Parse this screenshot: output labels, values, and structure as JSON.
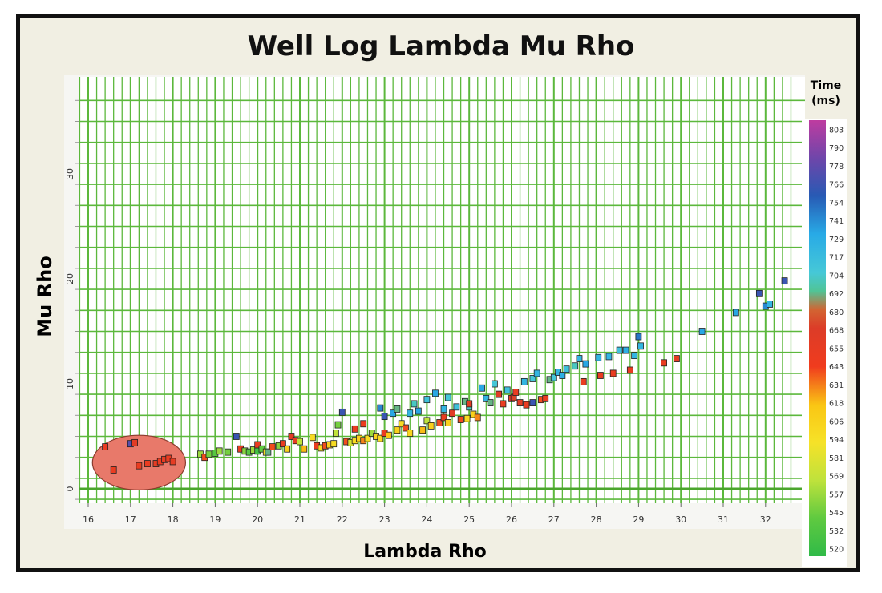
{
  "chart_data": {
    "type": "scatter",
    "title": "Well Log Lambda Mu Rho",
    "xlabel": "Lambda Rho",
    "ylabel": "Mu Rho",
    "xlim": [
      15.8,
      32.7
    ],
    "ylim": [
      -1,
      38
    ],
    "xticks": [
      "16",
      "17",
      "18",
      "19",
      "20",
      "21",
      "22",
      "23",
      "24",
      "25",
      "26",
      "27",
      "28",
      "29",
      "30",
      "31",
      "32"
    ],
    "yticks": [
      "0",
      "10",
      "20",
      "30"
    ],
    "grid": true,
    "highlight_ellipse": {
      "cx": 17.2,
      "cy": 2.5,
      "rx": 1.1,
      "ry": 2.6,
      "color": "#e8796a"
    },
    "colorbar": {
      "title_line1": "Time",
      "title_line2": "(ms)",
      "min": 520,
      "max": 803,
      "ticks": [
        "803",
        "790",
        "778",
        "766",
        "754",
        "741",
        "729",
        "717",
        "704",
        "692",
        "680",
        "668",
        "655",
        "643",
        "631",
        "618",
        "606",
        "594",
        "581",
        "569",
        "557",
        "545",
        "532",
        "520"
      ]
    },
    "points": [
      [
        16.4,
        4,
        650
      ],
      [
        16.6,
        1.8,
        650
      ],
      [
        17.0,
        4.3,
        770
      ],
      [
        17.1,
        4.4,
        660
      ],
      [
        17.2,
        2.2,
        650
      ],
      [
        17.4,
        2.4,
        650
      ],
      [
        17.6,
        2.4,
        655
      ],
      [
        17.7,
        2.6,
        650
      ],
      [
        17.8,
        2.8,
        655
      ],
      [
        17.9,
        2.9,
        650
      ],
      [
        18.0,
        2.6,
        655
      ],
      [
        18.65,
        3.3,
        560
      ],
      [
        18.75,
        3.0,
        640
      ],
      [
        18.85,
        3.3,
        550
      ],
      [
        19.0,
        3.4,
        540
      ],
      [
        19.1,
        3.6,
        560
      ],
      [
        19.3,
        3.5,
        550
      ],
      [
        19.5,
        5.0,
        760
      ],
      [
        19.6,
        3.8,
        650
      ],
      [
        19.7,
        3.6,
        555
      ],
      [
        19.8,
        3.5,
        540
      ],
      [
        19.9,
        3.7,
        560
      ],
      [
        20.0,
        3.6,
        530
      ],
      [
        20.0,
        4.2,
        650
      ],
      [
        20.1,
        3.8,
        545
      ],
      [
        20.2,
        3.5,
        600
      ],
      [
        20.25,
        3.5,
        690
      ],
      [
        20.35,
        4.0,
        640
      ],
      [
        20.5,
        4.1,
        555
      ],
      [
        20.6,
        4.3,
        650
      ],
      [
        20.7,
        3.8,
        610
      ],
      [
        20.8,
        5.0,
        660
      ],
      [
        20.9,
        4.6,
        655
      ],
      [
        21.0,
        4.5,
        570
      ],
      [
        21.1,
        3.8,
        620
      ],
      [
        21.3,
        4.9,
        600
      ],
      [
        21.4,
        4.1,
        650
      ],
      [
        21.5,
        3.9,
        600
      ],
      [
        21.6,
        4.1,
        640
      ],
      [
        21.7,
        4.2,
        610
      ],
      [
        21.8,
        4.3,
        600
      ],
      [
        21.85,
        5.3,
        570
      ],
      [
        21.9,
        6.1,
        550
      ],
      [
        22.0,
        7.3,
        760
      ],
      [
        22.1,
        4.5,
        640
      ],
      [
        22.2,
        4.4,
        580
      ],
      [
        22.3,
        4.6,
        600
      ],
      [
        22.3,
        5.7,
        650
      ],
      [
        22.4,
        4.8,
        610
      ],
      [
        22.5,
        6.2,
        645
      ],
      [
        22.5,
        4.6,
        630
      ],
      [
        22.6,
        4.8,
        600
      ],
      [
        22.7,
        5.3,
        560
      ],
      [
        22.8,
        5.0,
        610
      ],
      [
        22.9,
        4.8,
        600
      ],
      [
        22.9,
        7.7,
        740
      ],
      [
        23.0,
        5.3,
        650
      ],
      [
        23.0,
        6.9,
        760
      ],
      [
        23.1,
        5.1,
        615
      ],
      [
        23.2,
        7.2,
        730
      ],
      [
        23.3,
        7.6,
        690
      ],
      [
        23.3,
        5.6,
        610
      ],
      [
        23.4,
        6.2,
        600
      ],
      [
        23.5,
        5.8,
        640
      ],
      [
        23.6,
        7.2,
        720
      ],
      [
        23.6,
        5.3,
        605
      ],
      [
        23.7,
        8.1,
        700
      ],
      [
        23.8,
        7.4,
        730
      ],
      [
        23.9,
        5.6,
        620
      ],
      [
        24.0,
        6.5,
        570
      ],
      [
        24.0,
        8.5,
        710
      ],
      [
        24.1,
        6.0,
        610
      ],
      [
        24.2,
        9.1,
        730
      ],
      [
        24.3,
        6.3,
        640
      ],
      [
        24.4,
        7.6,
        720
      ],
      [
        24.4,
        6.8,
        650
      ],
      [
        24.5,
        8.7,
        705
      ],
      [
        24.5,
        6.3,
        610
      ],
      [
        24.6,
        7.2,
        660
      ],
      [
        24.7,
        7.8,
        710
      ],
      [
        24.8,
        6.6,
        640
      ],
      [
        24.9,
        8.3,
        690
      ],
      [
        24.95,
        6.7,
        600
      ],
      [
        25.0,
        7.8,
        700
      ],
      [
        25.0,
        8.1,
        660
      ],
      [
        25.1,
        7.1,
        610
      ],
      [
        25.2,
        6.8,
        630
      ],
      [
        25.3,
        9.6,
        730
      ],
      [
        25.4,
        8.6,
        720
      ],
      [
        25.5,
        8.2,
        690
      ],
      [
        25.6,
        10.0,
        705
      ],
      [
        25.7,
        9.0,
        660
      ],
      [
        25.8,
        8.1,
        650
      ],
      [
        25.9,
        9.4,
        710
      ],
      [
        26.0,
        8.6,
        650
      ],
      [
        26.05,
        8.7,
        670
      ],
      [
        26.1,
        9.2,
        650
      ],
      [
        26.2,
        8.2,
        660
      ],
      [
        26.3,
        10.2,
        720
      ],
      [
        26.35,
        8.0,
        650
      ],
      [
        26.5,
        10.5,
        705
      ],
      [
        26.5,
        8.2,
        760
      ],
      [
        26.6,
        11.0,
        720
      ],
      [
        26.7,
        8.5,
        640
      ],
      [
        26.8,
        8.6,
        650
      ],
      [
        26.9,
        10.4,
        690
      ],
      [
        27.0,
        10.6,
        705
      ],
      [
        27.1,
        11.1,
        720
      ],
      [
        27.2,
        10.8,
        725
      ],
      [
        27.3,
        11.4,
        710
      ],
      [
        27.5,
        11.7,
        700
      ],
      [
        27.6,
        12.4,
        720
      ],
      [
        27.7,
        10.2,
        650
      ],
      [
        27.75,
        11.9,
        730
      ],
      [
        28.05,
        12.5,
        720
      ],
      [
        28.1,
        10.8,
        650
      ],
      [
        28.3,
        12.6,
        720
      ],
      [
        28.4,
        11.0,
        650
      ],
      [
        28.55,
        13.2,
        710
      ],
      [
        28.7,
        13.2,
        725
      ],
      [
        28.8,
        11.3,
        650
      ],
      [
        28.9,
        12.7,
        720
      ],
      [
        29.0,
        14.5,
        745
      ],
      [
        29.05,
        13.6,
        720
      ],
      [
        29.6,
        12.0,
        650
      ],
      [
        29.9,
        12.4,
        655
      ],
      [
        30.5,
        15.0,
        730
      ],
      [
        31.3,
        16.8,
        730
      ],
      [
        31.85,
        18.6,
        760
      ],
      [
        32.0,
        17.4,
        740
      ],
      [
        32.1,
        17.6,
        720
      ],
      [
        32.45,
        19.8,
        760
      ]
    ]
  }
}
